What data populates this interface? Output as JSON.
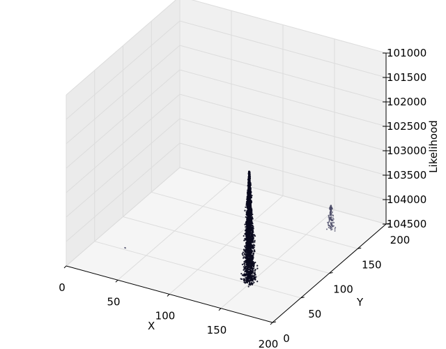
{
  "chart_data": {
    "type": "scatter",
    "projection": "3d",
    "title": "",
    "xlabel": "X",
    "ylabel": "Y",
    "zlabel": "Likelihood",
    "xlim": [
      0,
      200
    ],
    "ylim": [
      0,
      200
    ],
    "zlim": [
      -104500,
      -101000
    ],
    "zaxis_inverted": true,
    "xticks": [
      0,
      50,
      100,
      150,
      200
    ],
    "yticks": [
      0,
      50,
      100,
      150,
      200
    ],
    "zticks": [
      -101000,
      -101500,
      -102000,
      -102500,
      -103000,
      -103500,
      -104000,
      -104500
    ],
    "xtick_labels": [
      "0",
      "50",
      "100",
      "150",
      "200"
    ],
    "ytick_labels": [
      "0",
      "50",
      "100",
      "150",
      "200"
    ],
    "ztick_labels": [
      "101000",
      "101500",
      "102000",
      "102500",
      "103000",
      "103500",
      "104000",
      "104500"
    ],
    "grid": true,
    "colors": {
      "point_dark": "#0a0a1e",
      "point_light": "#4a4a66",
      "pane_back": "#f0f0f0",
      "pane_side": "#ebebeb",
      "pane_floor": "#f5f5f5",
      "grid": "#dcdcdc",
      "axis_line": "#000000"
    },
    "series": [
      {
        "approx_points": 4000,
        "center_x": 150,
        "center_y": 50,
        "z_range": [
          -104500,
          -102200
        ],
        "color": "#0a0a1e"
      },
      {
        "approx_points": 120,
        "center_x": 185,
        "center_y": 130,
        "z_range": [
          -104000,
          -103500
        ],
        "color": "#4a4a66"
      },
      {
        "approx_points": 2,
        "center_x": 32,
        "center_y": 45,
        "z_range": [
          -104450,
          -104350
        ],
        "color": "#4a4a66"
      }
    ]
  }
}
